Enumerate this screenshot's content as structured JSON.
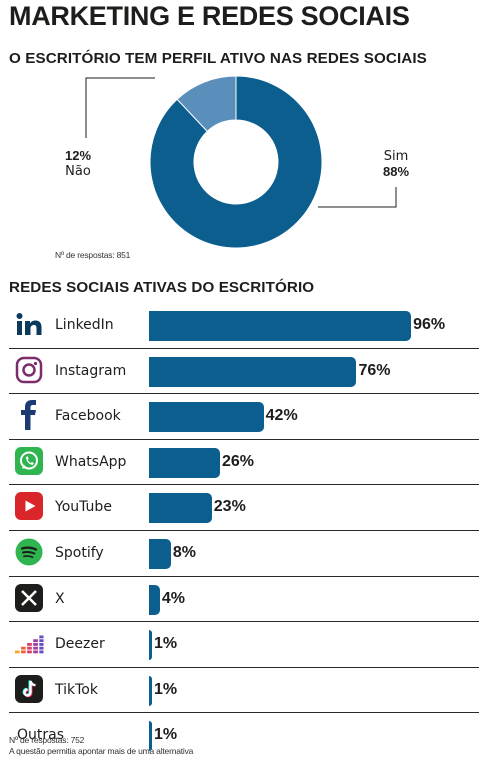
{
  "title": "MARKETING E REDES SOCIAIS",
  "section1": {
    "title": "O ESCRITÓRIO TEM PERFIL ATIVO NAS REDES SOCIAIS",
    "note": "Nº de respostas: 851"
  },
  "section2": {
    "title": "REDES SOCIAIS ATIVAS DO ESCRITÓRIO",
    "note": "Nº de respostas: 752",
    "note2": "A questão permitia apontar mais de uma alternativa"
  },
  "colors": {
    "primary": "#0b5e8e",
    "secondary": "#5b8fbb"
  },
  "chart_data": [
    {
      "type": "pie",
      "variant": "donut",
      "slices": [
        {
          "label": "Sim",
          "value": 88,
          "display": "88%",
          "color": "#0b5e8e"
        },
        {
          "label": "Não",
          "value": 12,
          "display": "12%",
          "color": "#5b8fbb"
        }
      ]
    },
    {
      "type": "bar",
      "orientation": "horizontal",
      "xlim": [
        0,
        100
      ],
      "categories": [
        "LinkedIn",
        "Instagram",
        "Facebook",
        "WhatsApp",
        "YouTube",
        "Spotify",
        "X",
        "Deezer",
        "TikTok",
        "Outras"
      ],
      "values": [
        96,
        76,
        42,
        26,
        23,
        8,
        4,
        1,
        1,
        1
      ],
      "labels": [
        "96%",
        "76%",
        "42%",
        "26%",
        "23%",
        "8%",
        "4%",
        "1%",
        "1%",
        "1%"
      ],
      "icons": [
        "linkedin-icon",
        "instagram-icon",
        "facebook-icon",
        "whatsapp-icon",
        "youtube-icon",
        "spotify-icon",
        "x-icon",
        "deezer-icon",
        "tiktok-icon",
        ""
      ]
    }
  ]
}
